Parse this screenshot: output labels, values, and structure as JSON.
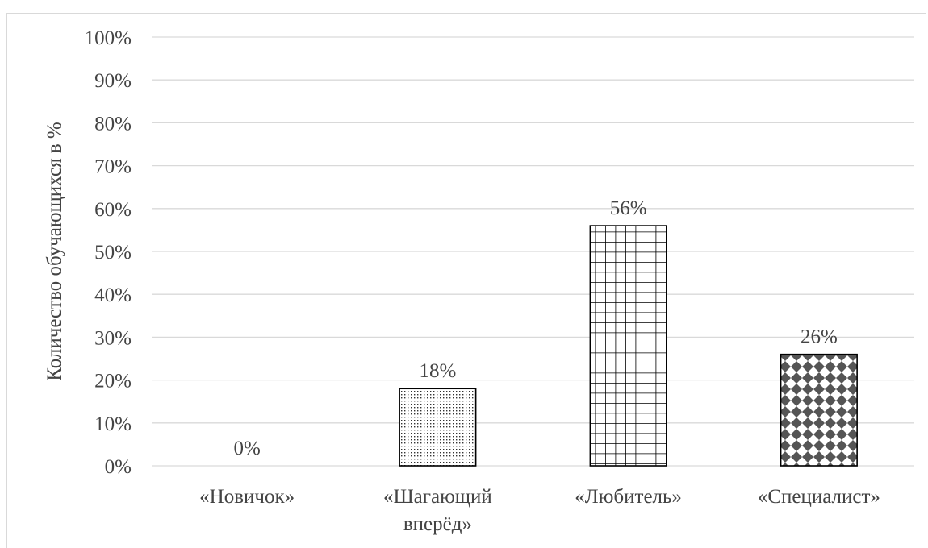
{
  "chart_data": {
    "type": "bar",
    "categories": [
      "«Новичок»",
      "«Шагающий вперёд»",
      "«Любитель»",
      "«Специалист»"
    ],
    "category_lines": [
      [
        "«Новичок»"
      ],
      [
        "«Шагающий",
        "вперёд»"
      ],
      [
        "«Любитель»"
      ],
      [
        "«Специалист»"
      ]
    ],
    "values": [
      0,
      18,
      56,
      26
    ],
    "data_labels": [
      "0%",
      "18%",
      "56%",
      "26%"
    ],
    "patterns": [
      "none",
      "dots",
      "grid",
      "diamonds"
    ],
    "ylabel": "Количество обучающихся в %",
    "xlabel": "",
    "ylim": [
      0,
      100
    ],
    "yticks": [
      "0%",
      "10%",
      "20%",
      "30%",
      "40%",
      "50%",
      "60%",
      "70%",
      "80%",
      "90%",
      "100%"
    ],
    "grid": true,
    "legend": "none"
  }
}
